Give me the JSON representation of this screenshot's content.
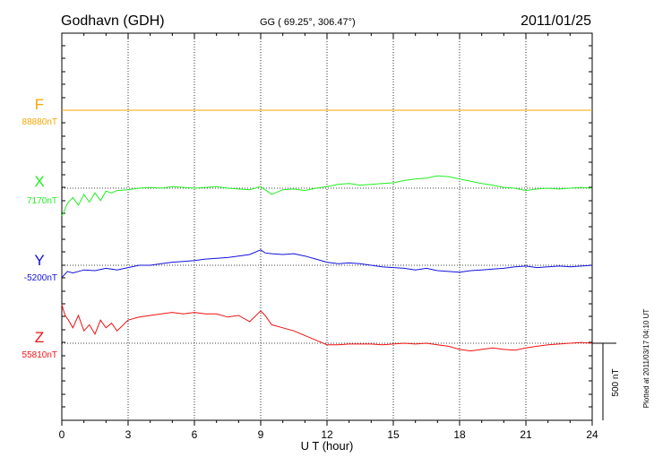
{
  "header": {
    "station": "Godhavn (GDH)",
    "coords": "GG ( 69.25°, 306.47°)",
    "date": "2011/01/25"
  },
  "side_note": "Plotted at 2011/03/17 04:10 UT",
  "scale_label": "500 nT",
  "colors": {
    "F": "#f5a500",
    "X": "#22ee22",
    "Y": "#1111dd",
    "Z": "#ee1111"
  },
  "chart_data": {
    "type": "line",
    "xlabel": "U T (hour)",
    "xlim": [
      0,
      24
    ],
    "xticks": [
      "0",
      "3",
      "6",
      "9",
      "12",
      "15",
      "18",
      "21",
      "24"
    ],
    "ylabel": "",
    "scale_bar_nT": 500,
    "series": [
      {
        "name": "F",
        "baseline_label": "88880nT",
        "x": [
          0,
          24
        ],
        "values": [
          0,
          0
        ]
      },
      {
        "name": "X",
        "baseline_label": "7170nT",
        "x": [
          0,
          0.1,
          0.25,
          0.5,
          0.75,
          1,
          1.25,
          1.5,
          1.75,
          2,
          2.25,
          2.5,
          3,
          3.5,
          4,
          4.5,
          5,
          5.5,
          6,
          6.5,
          7,
          7.5,
          8,
          8.5,
          9,
          9.5,
          10,
          10.5,
          11,
          11.5,
          12,
          12.5,
          13,
          13.5,
          14,
          14.5,
          15,
          15.5,
          16,
          16.5,
          17,
          17.5,
          18,
          18.5,
          19,
          19.5,
          20,
          20.5,
          21,
          21.5,
          22,
          22.5,
          23,
          23.5,
          24
        ],
        "values": [
          -180,
          -150,
          -100,
          -60,
          -110,
          -40,
          -90,
          -30,
          -80,
          -20,
          -30,
          -15,
          -10,
          0,
          5,
          0,
          10,
          5,
          0,
          5,
          10,
          0,
          -5,
          -10,
          10,
          -40,
          -10,
          -5,
          -15,
          0,
          10,
          25,
          30,
          20,
          25,
          30,
          35,
          50,
          60,
          65,
          80,
          75,
          60,
          45,
          30,
          20,
          5,
          0,
          -15,
          -5,
          0,
          -5,
          0,
          5,
          0
        ]
      },
      {
        "name": "Y",
        "baseline_label": "-5200nT",
        "x": [
          0,
          0.25,
          0.5,
          1,
          1.5,
          2,
          2.5,
          3,
          3.5,
          4,
          4.5,
          5,
          5.5,
          6,
          6.5,
          7,
          7.5,
          8,
          8.5,
          9,
          9.2,
          9.5,
          10,
          10.5,
          11,
          11.5,
          12,
          12.5,
          13,
          13.5,
          14,
          14.5,
          15,
          15.5,
          16,
          16.5,
          17,
          17.5,
          18,
          18.5,
          19,
          19.5,
          20,
          20.5,
          21,
          21.5,
          22,
          22.5,
          23,
          23.5,
          24
        ],
        "values": [
          -80,
          -40,
          -50,
          -30,
          -35,
          -20,
          -30,
          -15,
          0,
          0,
          10,
          20,
          25,
          30,
          40,
          45,
          50,
          60,
          70,
          100,
          80,
          75,
          70,
          75,
          60,
          40,
          20,
          10,
          15,
          10,
          0,
          -10,
          -15,
          -20,
          -30,
          -20,
          -35,
          -40,
          -45,
          -35,
          -30,
          -25,
          -20,
          -10,
          -5,
          -15,
          -10,
          -5,
          -10,
          -5,
          0
        ]
      },
      {
        "name": "Z",
        "baseline_label": "55810nT",
        "x": [
          0,
          0.15,
          0.3,
          0.5,
          0.75,
          1,
          1.25,
          1.5,
          1.75,
          2,
          2.25,
          2.5,
          3,
          3.5,
          4,
          4.5,
          5,
          5.5,
          6,
          6.5,
          7,
          7.5,
          8,
          8.5,
          9,
          9.2,
          9.5,
          10,
          10.5,
          11,
          11.5,
          12,
          12.5,
          13,
          13.5,
          14,
          14.5,
          15,
          15.5,
          16,
          16.5,
          17,
          17.5,
          18,
          18.5,
          19,
          19.5,
          20,
          20.5,
          21,
          21.5,
          22,
          22.5,
          23,
          23.5,
          24
        ],
        "values": [
          250,
          180,
          150,
          100,
          180,
          80,
          120,
          60,
          150,
          100,
          130,
          80,
          150,
          170,
          180,
          190,
          200,
          190,
          200,
          190,
          190,
          170,
          180,
          140,
          210,
          180,
          120,
          100,
          80,
          50,
          20,
          -10,
          -10,
          -5,
          -5,
          -5,
          -10,
          -5,
          0,
          -5,
          0,
          -10,
          -20,
          -40,
          -50,
          -40,
          -30,
          -40,
          -45,
          -30,
          -20,
          -10,
          -5,
          0,
          5,
          0
        ]
      }
    ]
  }
}
